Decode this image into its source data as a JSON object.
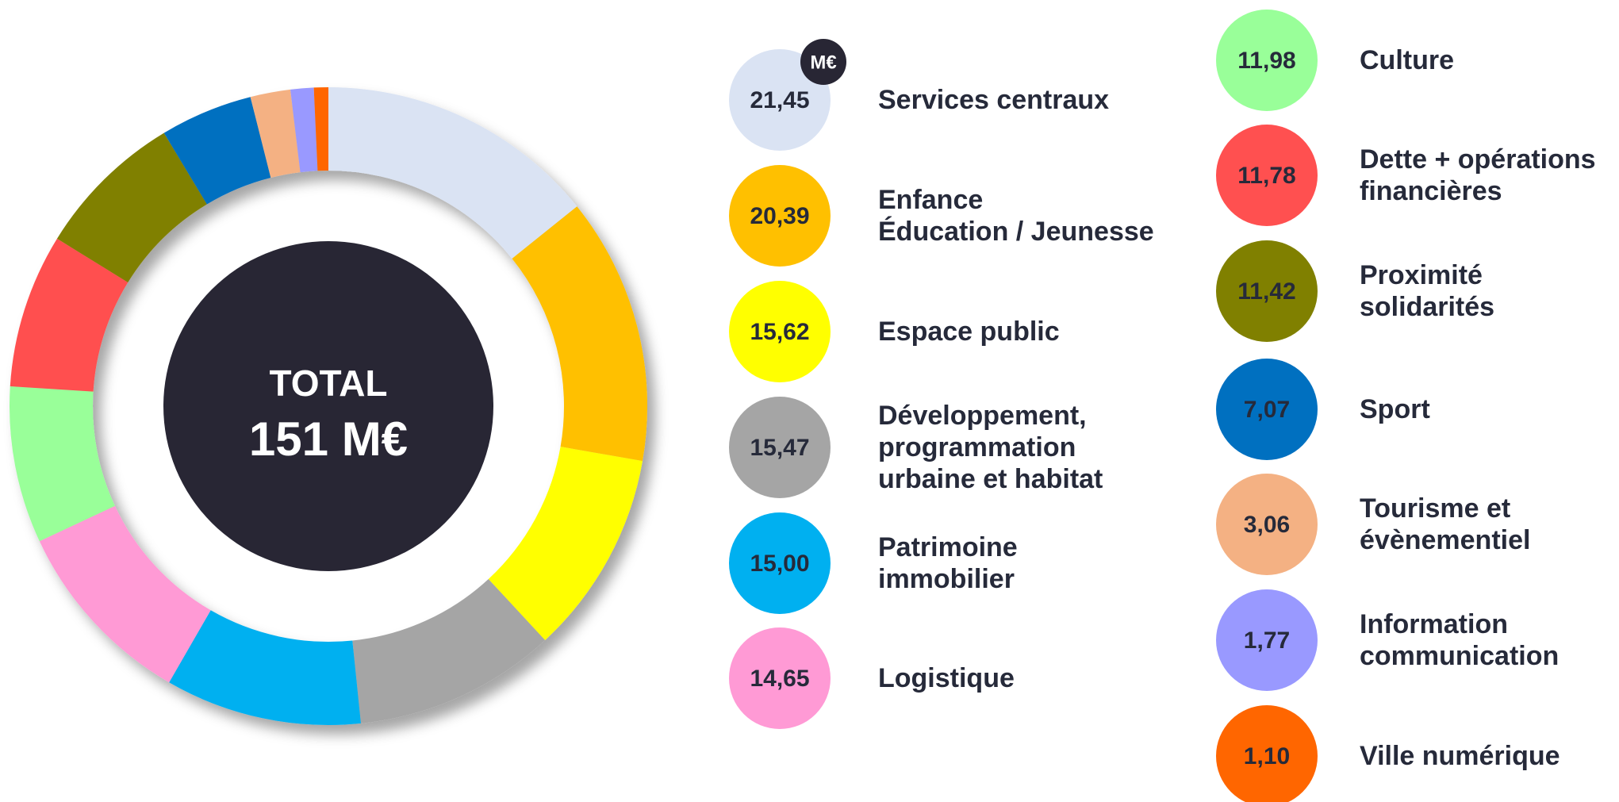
{
  "chart_data": {
    "type": "pie",
    "donut": true,
    "center_title": "TOTAL",
    "center_value": "151 M€",
    "unit_badge": "M€",
    "categories": [
      "Services centraux",
      "Enfance\nÉducation / Jeunesse",
      "Espace public",
      "Développement,\nprogrammation\nurbaine et habitat",
      "Patrimoine\nimmobilier",
      "Logistique",
      "Culture",
      "Dette + opérations\nfinancières",
      "Proximité solidarités",
      "Sport",
      "Tourisme et\névènementiel",
      "Information\ncommunication",
      "Ville numérique"
    ],
    "values": [
      21.45,
      20.39,
      15.62,
      15.47,
      15.0,
      14.65,
      11.98,
      11.78,
      11.42,
      7.07,
      3.06,
      1.77,
      1.1
    ],
    "value_labels": [
      "21,45",
      "20,39",
      "15,62",
      "15,47",
      "15,00",
      "14,65",
      "11,98",
      "11,78",
      "11,42",
      "7,07",
      "3,06",
      "1,77",
      "1,10"
    ],
    "colors": [
      "#dae3f3",
      "#ffc000",
      "#ffff00",
      "#a5a5a5",
      "#00b0f0",
      "#ff9ad5",
      "#99ff99",
      "#ff5050",
      "#808000",
      "#0070c0",
      "#f4b183",
      "#9999ff",
      "#ff6600"
    ]
  }
}
